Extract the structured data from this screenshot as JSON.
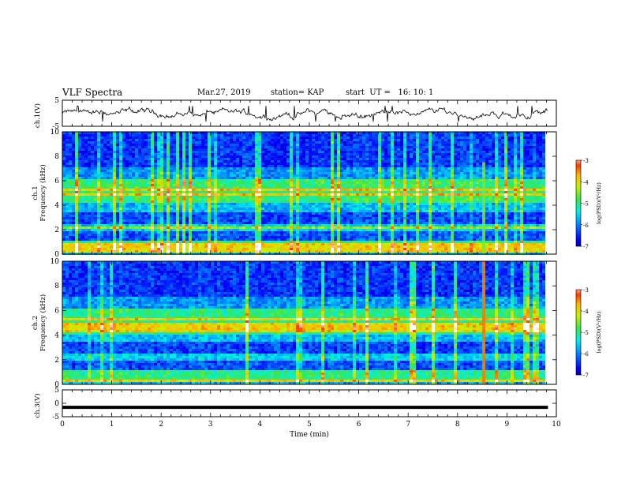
{
  "header": {
    "title": "VLF Spectra",
    "date": "Mar.27, 2019",
    "station": "station= KAP",
    "start": "start  UT =   16: 10: 1"
  },
  "chart_data": [
    {
      "type": "line",
      "panel": "ch1-waveform",
      "ylabel": "ch.1(V)",
      "ylim": [
        -5,
        5
      ],
      "yticks": [
        "5",
        "-5"
      ],
      "xlim": [
        0,
        9.83
      ],
      "description_values": "noisy waveform, mean ~ -0.2 V, amplitude ~ ±2.5 V"
    },
    {
      "type": "heatmap",
      "panel": "ch1-spectrogram",
      "ylabel": "ch.1\nFrequency (kHz)",
      "ylabel_line1": "ch.1",
      "ylabel_line2": "Frequency (kHz)",
      "ylim": [
        0,
        10
      ],
      "yticks": [
        "0",
        "2",
        "4",
        "6",
        "8",
        "10"
      ],
      "xlim": [
        0,
        10
      ],
      "colorbar": {
        "label": "log(PSD)(V²/Hz)",
        "range": [
          -7,
          -3
        ],
        "ticks": [
          "-3",
          "-4",
          "-5",
          "-6",
          "-7"
        ]
      },
      "bright_bands_khz": [
        0.4,
        0.8,
        2.2,
        4.9,
        5.3
      ]
    },
    {
      "type": "heatmap",
      "panel": "ch2-spectrogram",
      "ylabel_line1": "ch.2",
      "ylabel_line2": "Frequency (kHz)",
      "ylim": [
        0,
        10
      ],
      "yticks": [
        "0",
        "2",
        "4",
        "6",
        "8",
        "10"
      ],
      "xlim": [
        0,
        10
      ],
      "colorbar": {
        "label": "log(PSD)(V²/Hz)",
        "range": [
          -7,
          -3
        ],
        "ticks": [
          "-3",
          "-4",
          "-5",
          "-6",
          "-7"
        ]
      },
      "bright_bands_khz": [
        0.4,
        4.5,
        4.9,
        5.4
      ]
    },
    {
      "type": "line",
      "panel": "ch3-waveform",
      "ylabel": "ch.3(V)",
      "ylim": [
        -5,
        5
      ],
      "yticks": [
        "5",
        "0",
        "-5"
      ],
      "xlim": [
        0,
        9.83
      ],
      "constant_value": -1.5
    }
  ],
  "xaxis": {
    "label": "Time (min)",
    "ticks": [
      "0",
      "1",
      "2",
      "3",
      "4",
      "5",
      "6",
      "7",
      "8",
      "9",
      "10"
    ]
  }
}
